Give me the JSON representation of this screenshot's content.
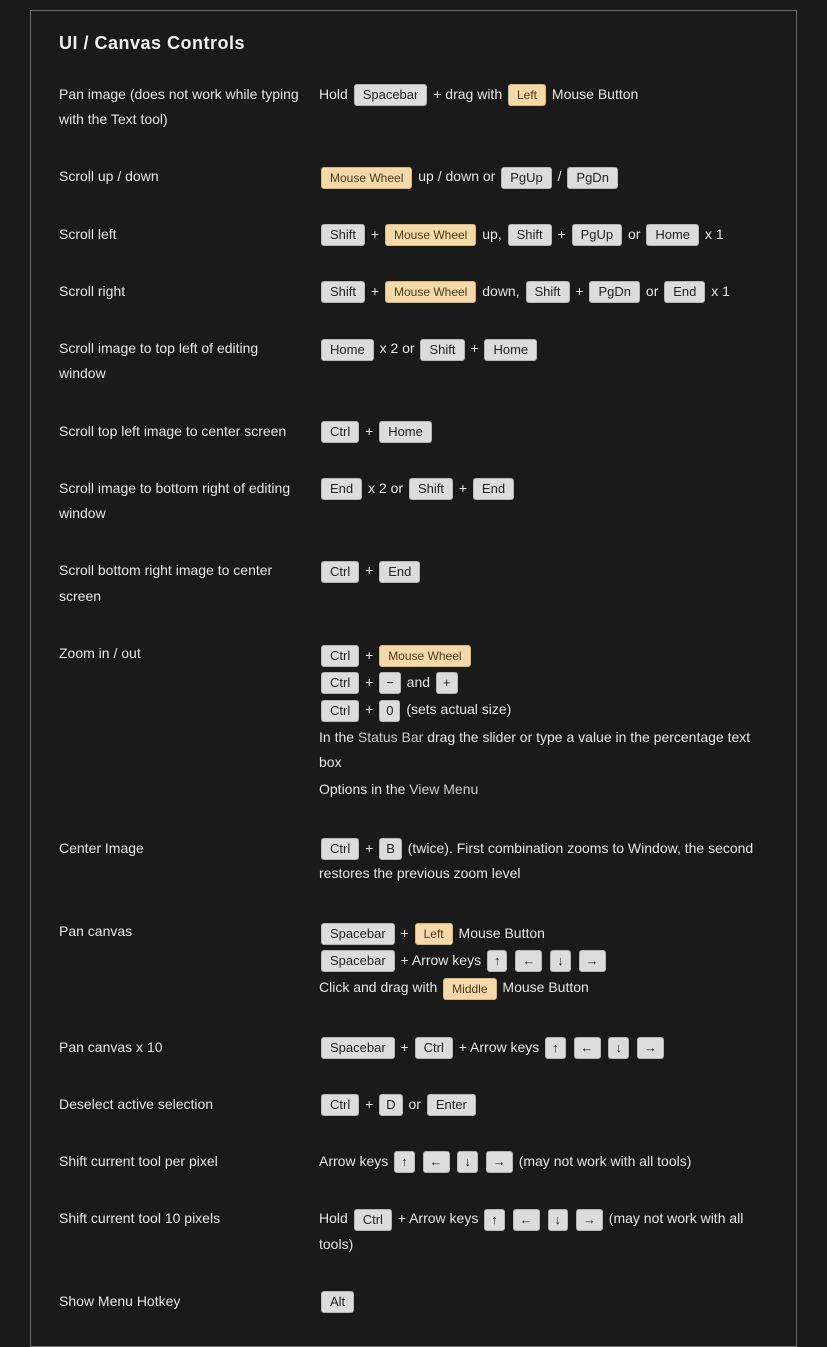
{
  "colors": {
    "page_bg": "#1a1a1a",
    "border": "#6e6e6e",
    "text": "#e6e6e6",
    "kbd_bg": "#dcdcdc",
    "kbd_text": "#222222",
    "kbd_border": "#b5b5b5",
    "accent_bg": "#f6d9a8",
    "accent_text": "#4a3a1a",
    "accent_border": "#d8b77a"
  },
  "title": "UI / Canvas Controls",
  "r0": {
    "label": "Pan image (does not work while typing with the Text tool)",
    "t_hold": "Hold ",
    "k_space": "Spacebar",
    "t_plus": " + drag with ",
    "k_left": "Left",
    "t_mb": " Mouse Button"
  },
  "r1": {
    "label": "Scroll up / down",
    "k_mw": "Mouse Wheel",
    "t_ud": " up / down or ",
    "k_pgup": "PgUp",
    "t_slash": " / ",
    "k_pgdn": "PgDn"
  },
  "r2": {
    "label": "Scroll left",
    "k_shift1": "Shift",
    "t_p1": " + ",
    "k_mw": "Mouse Wheel",
    "t_up": " up, ",
    "k_shift2": "Shift",
    "t_p2": " + ",
    "k_pgup": "PgUp",
    "t_or": " or ",
    "k_home": "Home",
    "t_x1": " x 1"
  },
  "r3": {
    "label": "Scroll right",
    "k_shift1": "Shift",
    "t_p1": " + ",
    "k_mw": "Mouse Wheel",
    "t_dn": " down, ",
    "k_shift2": "Shift",
    "t_p2": " + ",
    "k_pgdn": "PgDn",
    "t_or": " or ",
    "k_end": "End",
    "t_x1": " x 1"
  },
  "r4": {
    "label": "Scroll image to top left of editing window",
    "k_home1": "Home",
    "t_x2": " x 2 or ",
    "k_shift": "Shift",
    "t_p": " + ",
    "k_home2": "Home"
  },
  "r5": {
    "label": "Scroll top left image to center screen",
    "k_ctrl": "Ctrl",
    "t_p": " + ",
    "k_home": "Home"
  },
  "r6": {
    "label": "Scroll image to bottom right of editing window",
    "k_end1": "End",
    "t_x2": " x 2 or ",
    "k_shift": "Shift",
    "t_p": " + ",
    "k_end2": "End"
  },
  "r7": {
    "label": "Scroll bottom right image to center screen",
    "k_ctrl": "Ctrl",
    "t_p": " + ",
    "k_end": "End"
  },
  "r8": {
    "label": "Zoom in / out",
    "l1": {
      "k_ctrl": "Ctrl",
      "t_p": " + ",
      "k_mw": "Mouse Wheel"
    },
    "l2": {
      "k_ctrl": "Ctrl",
      "t_p": " + ",
      "k_minus": "−",
      "t_and": " and ",
      "k_plus": "+"
    },
    "l3": {
      "k_ctrl": "Ctrl",
      "t_p": " + ",
      "k_0": "0",
      "t_act": " (sets actual size)"
    },
    "l4": {
      "t1": "In the ",
      "term": "Status Bar",
      "t2": " drag the slider or type a value in the percentage text box"
    },
    "l5": {
      "t1": "Options in the ",
      "term": "View Menu"
    }
  },
  "r9": {
    "label": "Center Image",
    "k_ctrl": "Ctrl",
    "t_p": " + ",
    "k_b": "B",
    "t_rest": " (twice). First combination zooms to Window, the second restores the previous zoom level"
  },
  "r10": {
    "label": "Pan canvas",
    "l1": {
      "k_space": "Spacebar",
      "t_p": " + ",
      "k_left": "Left",
      "t_mb": " Mouse Button"
    },
    "l2": {
      "k_space": "Spacebar",
      "t_ak": " + Arrow keys ",
      "a1": "↑",
      "a2": "←",
      "a3": "↓",
      "a4": "→"
    },
    "l3": {
      "t1": "Click and drag with ",
      "k_mid": "Middle",
      "t2": " Mouse Button"
    }
  },
  "r11": {
    "label": "Pan canvas x 10",
    "k_space": "Spacebar",
    "t_p1": " + ",
    "k_ctrl": "Ctrl",
    "t_ak": " + Arrow keys ",
    "a1": "↑",
    "a2": "←",
    "a3": "↓",
    "a4": "→"
  },
  "r12": {
    "label": "Deselect active selection",
    "k_ctrl": "Ctrl",
    "t_p": " + ",
    "k_d": "D",
    "t_or": " or ",
    "k_enter": "Enter"
  },
  "r13": {
    "label": "Shift current tool per pixel",
    "t_ak": "Arrow keys ",
    "a1": "↑",
    "a2": "←",
    "a3": "↓",
    "a4": "→",
    "t_note": " (may not work with all tools)"
  },
  "r14": {
    "label": "Shift current tool 10 pixels",
    "t_hold": "Hold ",
    "k_ctrl": "Ctrl",
    "t_ak": " + Arrow keys ",
    "a1": "↑",
    "a2": "←",
    "a3": "↓",
    "a4": "→",
    "t_note": " (may not work with all tools)"
  },
  "r15": {
    "label": "Show Menu Hotkey",
    "k_alt": "Alt"
  }
}
